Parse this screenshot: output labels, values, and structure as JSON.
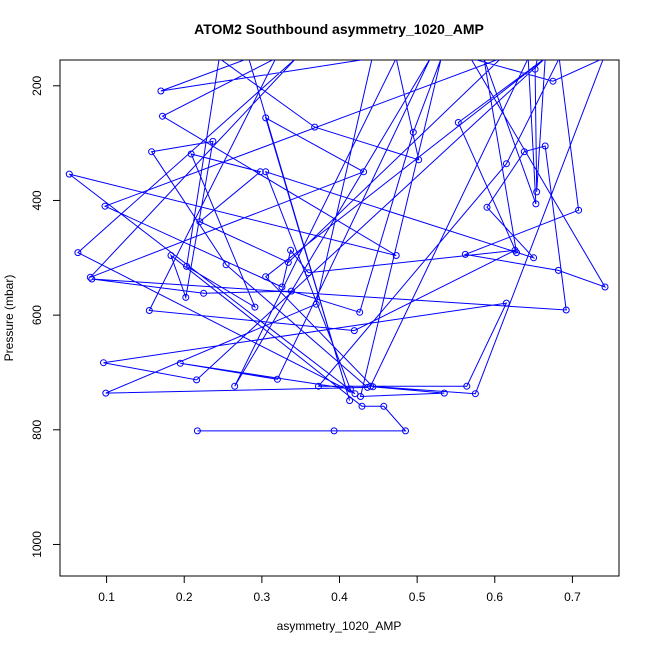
{
  "chart_data": {
    "type": "line",
    "title": "ATOM2 Southbound asymmetry_1020_AMP",
    "xlabel": "asymmetry_1020_AMP",
    "ylabel": "Pressure (mbar)",
    "xlim": [
      0.04,
      0.76
    ],
    "ylim": [
      1055,
      155
    ],
    "y_reversed": true,
    "grid": false,
    "x_ticks": [
      0.1,
      0.2,
      0.3,
      0.4,
      0.5,
      0.6,
      0.7
    ],
    "x_tick_labels": [
      "0.1",
      "0.2",
      "0.3",
      "0.4",
      "0.5",
      "0.6",
      "0.7"
    ],
    "y_ticks": [
      200,
      400,
      600,
      800,
      1000
    ],
    "y_tick_labels": [
      "200",
      "400",
      "600",
      "800",
      "1000"
    ],
    "color": "#0000ff",
    "series": [
      {
        "points": [
          [
            0.217,
            802
          ],
          [
            0.393,
            802
          ],
          [
            0.485,
            802
          ],
          [
            0.457,
            759
          ],
          [
            0.429,
            759
          ],
          [
            0.183,
            496
          ],
          [
            0.202,
            569
          ],
          [
            0.237,
            297
          ],
          [
            0.158,
            315
          ],
          [
            0.254,
            512
          ],
          [
            0.436,
            726
          ],
          [
            0.099,
            736
          ],
          [
            0.37,
            581
          ],
          [
            0.442,
            152
          ],
          [
            0.17,
            209
          ],
          [
            0.283,
            152
          ],
          [
            0.413,
            749
          ],
          [
            0.305,
            256
          ],
          [
            0.431,
            350
          ],
          [
            0.079,
            534
          ],
          [
            0.344,
            152
          ],
          [
            0.063,
            491
          ],
          [
            0.42,
            737
          ],
          [
            0.052,
            354
          ],
          [
            0.473,
            496
          ],
          [
            0.172,
            253
          ],
          [
            0.318,
            152
          ],
          [
            0.155,
            592
          ],
          [
            0.419,
            627
          ],
          [
            0.626,
            487
          ],
          [
            0.36,
            526
          ],
          [
            0.337,
            487
          ],
          [
            0.326,
            551
          ],
          [
            0.098,
            410
          ],
          [
            0.608,
            152
          ],
          [
            0.334,
            508
          ],
          [
            0.22,
            437
          ],
          [
            0.298,
            350
          ],
          [
            0.209,
            319
          ],
          [
            0.291,
            586
          ],
          [
            0.203,
            515
          ],
          [
            0.245,
            152
          ],
          [
            0.368,
            272
          ],
          [
            0.502,
            329
          ],
          [
            0.473,
            152
          ],
          [
            0.265,
            724
          ],
          [
            0.517,
            152
          ],
          [
            0.32,
            712
          ],
          [
            0.195,
            684
          ],
          [
            0.414,
            729
          ],
          [
            0.305,
            350
          ],
          [
            0.65,
            500
          ],
          [
            0.59,
            412
          ],
          [
            0.638,
            315
          ],
          [
            0.665,
            305
          ],
          [
            0.692,
            591
          ],
          [
            0.081,
            537
          ],
          [
            0.225,
            562
          ],
          [
            0.338,
            558
          ],
          [
            0.426,
            595
          ],
          [
            0.495,
            281
          ],
          [
            0.531,
            152
          ],
          [
            0.427,
            742
          ],
          [
            0.535,
            736
          ],
          [
            0.443,
            725
          ],
          [
            0.305,
            533
          ],
          [
            0.665,
            152
          ],
          [
            0.216,
            713
          ],
          [
            0.096,
            683
          ],
          [
            0.615,
            579
          ],
          [
            0.564,
            724
          ],
          [
            0.373,
            724
          ],
          [
            0.615,
            336
          ],
          [
            0.683,
            152
          ],
          [
            0.708,
            417
          ],
          [
            0.562,
            494
          ],
          [
            0.682,
            522
          ],
          [
            0.742,
            551
          ],
          [
            0.569,
            152
          ],
          [
            0.675,
            192
          ],
          [
            0.74,
            152
          ],
          [
            0.575,
            737
          ],
          [
            0.44,
            724
          ],
          [
            0.643,
            152
          ],
          [
            0.653,
            406
          ],
          [
            0.586,
            152
          ],
          [
            0.628,
            491
          ],
          [
            0.553,
            264
          ],
          [
            0.665,
            152
          ],
          [
            0.654,
            385
          ],
          [
            0.652,
            171
          ],
          [
            0.655,
            152
          ]
        ]
      }
    ]
  }
}
